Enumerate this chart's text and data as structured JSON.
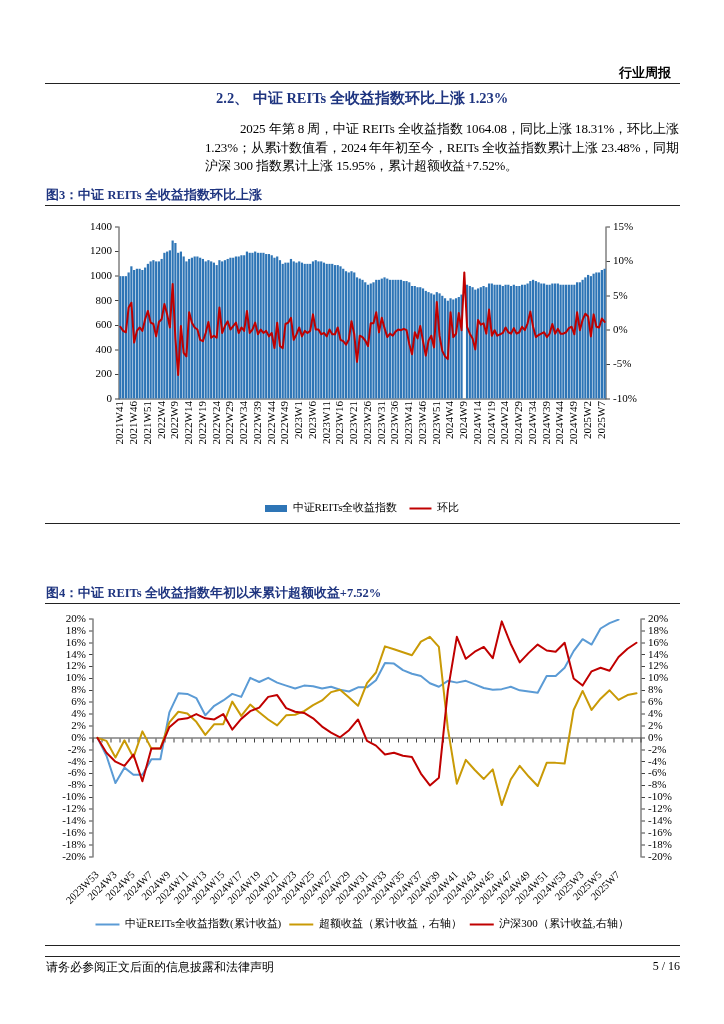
{
  "chart_data": [
    {
      "type": "bar",
      "title": "图3：中证 REITs 全收益指数环比上涨",
      "annotations": [
        "行业周报",
        "2.2、 中证 REITs 全收益指数环比上涨 1.23%",
        "2025 年第 8 周，中证 REITs 全收益指数 1064.08，同比上涨 18.31%，环比上涨 1.23%；从累计数值看，2024 年年初至今，REITs 全收益指数累计上涨 23.48%，同期沪深 300 指数累计上涨 15.95%，累计超额收益+7.52%。"
      ],
      "categories": [
        "2021W41",
        null,
        null,
        null,
        null,
        "2021W46",
        null,
        null,
        null,
        null,
        "2021W51",
        null,
        null,
        null,
        null,
        "2022W4",
        null,
        null,
        null,
        null,
        "2022W9",
        null,
        null,
        null,
        null,
        "2022W14",
        null,
        null,
        null,
        null,
        "2022W19",
        null,
        null,
        null,
        null,
        "2022W24",
        null,
        null,
        null,
        null,
        "2022W29",
        null,
        null,
        null,
        null,
        "2022W34",
        null,
        null,
        null,
        null,
        "2022W39",
        null,
        null,
        null,
        null,
        "2022W44",
        null,
        null,
        null,
        null,
        "2022W49",
        null,
        null,
        null,
        null,
        "2023W1",
        null,
        null,
        null,
        null,
        "2023W6",
        null,
        null,
        null,
        null,
        "2023W11",
        null,
        null,
        null,
        null,
        "2023W16",
        null,
        null,
        null,
        null,
        "2023W21",
        null,
        null,
        null,
        null,
        "2023W26",
        null,
        null,
        null,
        null,
        "2023W31",
        null,
        null,
        null,
        null,
        "2023W36",
        null,
        null,
        null,
        null,
        "2023W41",
        null,
        null,
        null,
        null,
        "2023W46",
        null,
        null,
        null,
        null,
        "2023W51",
        null,
        null,
        null,
        null,
        "2024W4",
        null,
        null,
        null,
        null,
        "2024W9",
        null,
        null,
        null,
        null,
        "2024W14",
        null,
        null,
        null,
        null,
        "2024W19",
        null,
        null,
        null,
        null,
        "2024W24",
        null,
        null,
        null,
        null,
        "2024W29",
        null,
        null,
        null,
        null,
        "2024W34",
        null,
        null,
        null,
        null,
        "2024W39",
        null,
        null,
        null,
        null,
        "2024W44",
        null,
        null,
        null,
        null,
        "2024W49",
        null,
        null,
        null,
        null,
        "2025W2",
        null,
        null,
        null,
        null,
        "2025W7",
        null
      ],
      "series": [
        {
          "name": "中证REITs全收益指数",
          "color": "#2e75b6",
          "values": [
            1000,
            1000,
            1000,
            1030,
            1080,
            1050,
            1060,
            1060,
            1050,
            1070,
            1100,
            1120,
            1130,
            1120,
            1120,
            1140,
            1190,
            1200,
            1210,
            1290,
            1270,
            1190,
            1200,
            1160,
            1120,
            1140,
            1150,
            1160,
            1160,
            1150,
            1140,
            1120,
            1130,
            1120,
            1110,
            1090,
            1130,
            1120,
            1130,
            1140,
            1150,
            1150,
            1160,
            1160,
            1170,
            1170,
            1200,
            1190,
            1190,
            1200,
            1190,
            1190,
            1190,
            1180,
            1180,
            1170,
            1150,
            1160,
            1130,
            1100,
            1110,
            1110,
            1140,
            1120,
            1110,
            1120,
            1110,
            1100,
            1100,
            1100,
            1120,
            1130,
            1120,
            1120,
            1110,
            1100,
            1100,
            1100,
            1090,
            1090,
            1080,
            1060,
            1040,
            1030,
            1040,
            1030,
            990,
            980,
            970,
            950,
            930,
            940,
            950,
            970,
            970,
            980,
            990,
            980,
            970,
            970,
            970,
            970,
            970,
            960,
            960,
            950,
            920,
            920,
            910,
            910,
            900,
            880,
            870,
            860,
            850,
            870,
            860,
            840,
            820,
            800,
            820,
            810,
            820,
            830,
            850,
            null,
            930,
            920,
            910,
            890,
            900,
            910,
            920,
            910,
            940,
            940,
            930,
            930,
            930,
            920,
            930,
            930,
            920,
            930,
            920,
            920,
            930,
            930,
            940,
            960,
            970,
            960,
            950,
            940,
            940,
            930,
            930,
            940,
            940,
            940,
            930,
            930,
            930,
            930,
            930,
            930,
            950,
            950,
            970,
            990,
            1010,
            1000,
            1020,
            1030,
            1030,
            1050,
            1060
          ]
        },
        {
          "name": "环比",
          "type": "line",
          "axis": "y2",
          "color": "#c00000",
          "values": [
            0.5,
            -0.1,
            -0.3,
            3.3,
            4.0,
            -1.8,
            -0.1,
            0.4,
            -0.1,
            1.6,
            2.8,
            1.1,
            0.9,
            -0.9,
            1.2,
            1.6,
            3.8,
            2.3,
            0.4,
            6.7,
            -1.2,
            -6.5,
            0.6,
            -3.3,
            -3.8,
            2.6,
            1.1,
            0.4,
            0.1,
            -1.4,
            -1.6,
            -0.4,
            1.2,
            -1.1,
            -0.8,
            -1.1,
            3.3,
            -0.4,
            0.6,
            1.3,
            0.1,
            0.6,
            1.1,
            -0.4,
            0.4,
            -0.1,
            2.8,
            -0.4,
            0.1,
            1.1,
            -0.6,
            0.1,
            -0.4,
            -0.1,
            -0.9,
            -0.4,
            -2.6,
            1.1,
            -2.3,
            -2.6,
            0.9,
            1.1,
            1.8,
            -1.4,
            -0.6,
            0.4,
            -0.9,
            -0.1,
            -0.4,
            -0.1,
            2.3,
            0.1,
            0.1,
            -0.6,
            -0.4,
            -0.9,
            0.1,
            -0.6,
            -0.6,
            0.4,
            -1.4,
            -1.6,
            -2.1,
            -1.4,
            1.3,
            -0.6,
            -4.6,
            -0.8,
            -1.0,
            -1.5,
            -2.3,
            1.0,
            1.0,
            2.6,
            -0.3,
            1.8,
            0.3,
            -1.0,
            -0.5,
            -0.8,
            -0.2,
            0.1,
            0.0,
            0.2,
            0.0,
            -2.0,
            -3.5,
            -0.3,
            -1.2,
            0.6,
            -1.6,
            -3.7,
            -1.5,
            -0.8,
            -2.5,
            4.1,
            -0.8,
            -3.0,
            -3.8,
            -4.2,
            2.6,
            -1.0,
            -0.5,
            2.5,
            0.0,
            8.4,
            0.5,
            -0.5,
            -1.2,
            -2.8,
            1.5,
            0.8,
            1.0,
            -0.5,
            3.0,
            -0.8,
            0.0,
            -0.8,
            -0.6,
            -0.4,
            0.4,
            -0.3,
            -0.5,
            0.3,
            -0.5,
            -0.3,
            0.5,
            0.0,
            1.0,
            2.7,
            0.5,
            -1.0,
            -0.7,
            -0.5,
            -0.3,
            -1.0,
            -0.5,
            0.9,
            -0.5,
            0.2,
            -0.5,
            -0.5,
            -0.3,
            0.3,
            0.5,
            -0.6,
            2.6,
            0.0,
            1.5,
            2.4,
            2.0,
            -0.9,
            2.3,
            0.5,
            0.4,
            1.7,
            1.2
          ]
        }
      ],
      "ylim": [
        0,
        1400
      ],
      "yticks": [
        0,
        200,
        400,
        600,
        800,
        1000,
        1200,
        1400
      ],
      "y2lim": [
        -10,
        15
      ],
      "y2ticks": [
        {
          "value": -10,
          "label": "-10%"
        },
        {
          "value": -5,
          "label": "-5%"
        },
        {
          "value": 0,
          "label": "0%"
        },
        {
          "value": 5,
          "label": "5%"
        },
        {
          "value": 10,
          "label": "10%"
        },
        {
          "value": 15,
          "label": "15%"
        }
      ],
      "legend": "bottom"
    },
    {
      "type": "line",
      "title": "图4：中证 REITs 全收益指数年初以来累计超额收益+7.52%",
      "annotations": [
        "请务必参阅正文后面的信息披露和法律声明",
        "5 / 16"
      ],
      "categories": [
        "2023W53",
        null,
        "2024W3",
        null,
        "2024W5",
        null,
        "2024W7",
        null,
        "2024W9",
        null,
        "2024W11",
        null,
        "2024W13",
        null,
        "2024W15",
        null,
        "2024W17",
        null,
        "2024W19",
        null,
        "2024W21",
        null,
        "2024W23",
        null,
        "2024W25",
        null,
        "2024W27",
        null,
        "2024W29",
        null,
        "2024W31",
        null,
        "2024W33",
        null,
        "2024W35",
        null,
        "2024W37",
        null,
        "2024W39",
        null,
        "2024W41",
        null,
        "2024W43",
        null,
        "2024W45",
        null,
        "2024W47",
        null,
        "2024W49",
        null,
        "2024W51",
        null,
        "2024W53",
        null,
        "2025W3",
        null,
        "2025W5",
        null,
        "2025W7",
        null,
        null
      ],
      "series": [
        {
          "name": "中证REITs全收益指数(累计收益)",
          "color": "#5b9bd5",
          "values": [
            0,
            -3,
            -7.6,
            -5,
            -6.2,
            -6.2,
            -3.6,
            -3.6,
            4.3,
            7.5,
            7.4,
            6.7,
            3.8,
            5.4,
            6.3,
            7.4,
            6.9,
            10.1,
            9.4,
            10.1,
            9.3,
            8.8,
            8.3,
            8.8,
            8.7,
            8.3,
            8.6,
            8.1,
            7.8,
            8.5,
            8.5,
            9.7,
            12.6,
            12.5,
            11.4,
            10.8,
            10.4,
            9.2,
            8.6,
            9.6,
            9.3,
            9.6,
            9.0,
            8.4,
            8.1,
            8.2,
            8.6,
            8.0,
            7.8,
            7.6,
            10.4,
            10.4,
            11.8,
            14.6,
            16.6,
            15.7,
            18.4,
            19.3,
            19.9,
            null,
            null
          ]
        },
        {
          "name": "超额收益（累计收益，右轴）",
          "color": "#c99a06",
          "axis": "y2",
          "values": [
            0,
            -0.5,
            -3.3,
            -0.4,
            -3.3,
            1.1,
            -1.8,
            -1.8,
            2.6,
            4.4,
            4.1,
            2.7,
            0.5,
            2.3,
            2.3,
            6.1,
            3.7,
            5.6,
            4.3,
            3.1,
            2.1,
            3.8,
            3.9,
            4.5,
            5.5,
            6.3,
            7.7,
            8.1,
            6.8,
            5.4,
            9.2,
            11,
            15.4,
            14.9,
            14.4,
            13.9,
            16.2,
            17,
            15.3,
            1.6,
            -7.7,
            -3.7,
            -5.4,
            -6.9,
            -5.3,
            -11.3,
            -7,
            -4.7,
            -6.5,
            -8.1,
            -4.2,
            -4.2,
            -4.3,
            4.7,
            7.9,
            4.7,
            6.6,
            8,
            6.4,
            7.2,
            7.5
          ]
        },
        {
          "name": "沪深300（累计收益,右轴）",
          "color": "#c00000",
          "axis": "y2",
          "values": [
            0,
            -2.5,
            -4,
            -4.7,
            -2.8,
            -7.3,
            -1.8,
            -1.8,
            1.8,
            3.1,
            3.3,
            4,
            3.3,
            3.1,
            4,
            1.4,
            3.2,
            4.5,
            5.1,
            6.9,
            7.2,
            5,
            4.4,
            4.2,
            3.3,
            1.9,
            0.9,
            0.1,
            1.3,
            3.1,
            -0.5,
            -1.3,
            -2.8,
            -2.5,
            -3,
            -3.2,
            -6,
            -8,
            -6.7,
            8,
            17,
            13.3,
            14.5,
            15.3,
            13.4,
            19.6,
            15.8,
            12.7,
            14.3,
            15.7,
            14.7,
            14.5,
            16,
            10,
            8.8,
            11.2,
            11.8,
            11.3,
            13.6,
            15,
            16
          ]
        }
      ],
      "ylim": [
        -20,
        20
      ],
      "yticks": [
        {
          "value": -20,
          "label": "-20%"
        },
        {
          "value": -18,
          "label": "-18%"
        },
        {
          "value": -16,
          "label": "-16%"
        },
        {
          "value": -14,
          "label": "-14%"
        },
        {
          "value": -12,
          "label": "-12%"
        },
        {
          "value": -10,
          "label": "-10%"
        },
        {
          "value": -8,
          "label": "-8%"
        },
        {
          "value": -6,
          "label": "-6%"
        },
        {
          "value": -4,
          "label": "-4%"
        },
        {
          "value": -2,
          "label": "-2%"
        },
        {
          "value": 0,
          "label": "0%"
        },
        {
          "value": 2,
          "label": "2%"
        },
        {
          "value": 4,
          "label": "4%"
        },
        {
          "value": 6,
          "label": "6%"
        },
        {
          "value": 8,
          "label": "8%"
        },
        {
          "value": 10,
          "label": "10%"
        },
        {
          "value": 12,
          "label": "12%"
        },
        {
          "value": 14,
          "label": "14%"
        },
        {
          "value": 16,
          "label": "16%"
        },
        {
          "value": 18,
          "label": "18%"
        },
        {
          "value": 20,
          "label": "20%"
        }
      ],
      "y2lim": [
        -20,
        20
      ],
      "y2ticks": [
        {
          "value": -20,
          "label": "-20%"
        },
        {
          "value": -18,
          "label": "-18%"
        },
        {
          "value": -16,
          "label": "-16%"
        },
        {
          "value": -14,
          "label": "-14%"
        },
        {
          "value": -12,
          "label": "-12%"
        },
        {
          "value": -10,
          "label": "-10%"
        },
        {
          "value": -8,
          "label": "-8%"
        },
        {
          "value": -6,
          "label": "-6%"
        },
        {
          "value": -4,
          "label": "-4%"
        },
        {
          "value": -2,
          "label": "-2%"
        },
        {
          "value": 0,
          "label": "0%"
        },
        {
          "value": 2,
          "label": "2%"
        },
        {
          "value": 4,
          "label": "4%"
        },
        {
          "value": 6,
          "label": "6%"
        },
        {
          "value": 8,
          "label": "8%"
        },
        {
          "value": 10,
          "label": "10%"
        },
        {
          "value": 12,
          "label": "12%"
        },
        {
          "value": 14,
          "label": "14%"
        },
        {
          "value": 16,
          "label": "16%"
        },
        {
          "value": 18,
          "label": "18%"
        },
        {
          "value": 20,
          "label": "20%"
        }
      ],
      "legend": "bottom"
    }
  ]
}
